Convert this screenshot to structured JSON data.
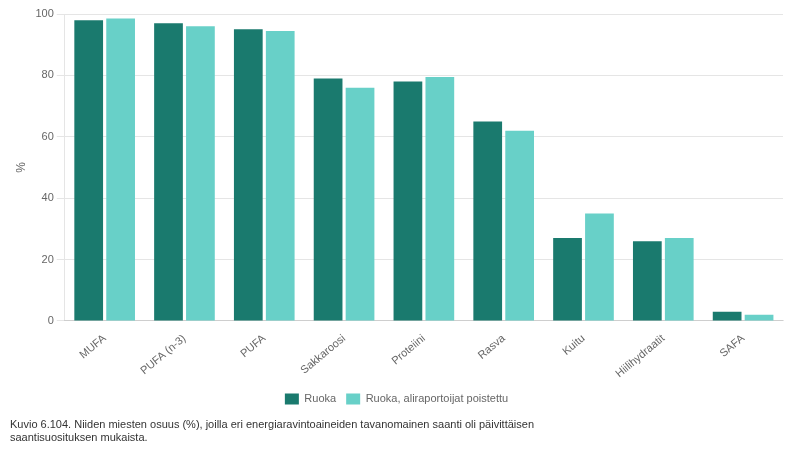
{
  "chart_data": {
    "type": "bar",
    "ylabel": "%",
    "annotations": [
      "Kuvio 6.104. Niiden miesten osuus (%), joilla eri energiaravintoaineiden tavanomainen saanti oli päivittäisen",
      "saantisuosituksen mukaista."
    ],
    "categories": [
      "MUFA",
      "PUFA (n-3)",
      "PUFA",
      "Sakkaroosi",
      "Proteiini",
      "Rasva",
      "Kuitu",
      "Hiilihydraatit",
      "SAFA"
    ],
    "series": [
      {
        "name": "Ruoka",
        "color": "#1a7a6e",
        "values": [
          98,
          97,
          95,
          79,
          78,
          65,
          27,
          26,
          3
        ]
      },
      {
        "name": "Ruoka, aliraportoijat poistettu",
        "color": "#68d0c8",
        "values": [
          98.5,
          96,
          94.5,
          76,
          79.5,
          62,
          35,
          27,
          2
        ]
      }
    ],
    "ylim": [
      0,
      100
    ],
    "yticks": [
      0,
      20,
      40,
      60,
      80,
      100
    ],
    "grid": true,
    "legend": "bottom"
  }
}
